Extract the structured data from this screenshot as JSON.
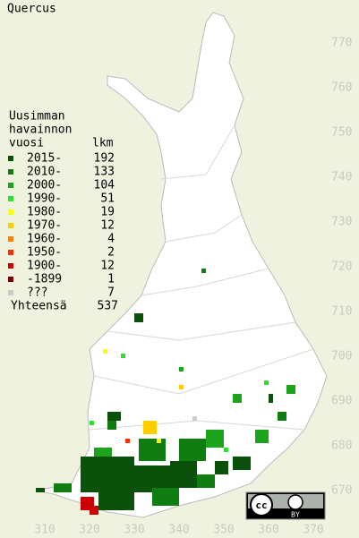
{
  "title": "Quercus",
  "legend": {
    "heading": [
      "Uusimman",
      "havainnon",
      "vuosi"
    ],
    "count_heading": "lkm",
    "rows": [
      {
        "label": "2015-",
        "count": 192,
        "color": "#0b500b"
      },
      {
        "label": "2010-",
        "count": 133,
        "color": "#0f7d0f"
      },
      {
        "label": "2000-",
        "count": 104,
        "color": "#1ca51c"
      },
      {
        "label": "1990-",
        "count": 51,
        "color": "#2ee02e"
      },
      {
        "label": "1980-",
        "count": 19,
        "color": "#ffff00"
      },
      {
        "label": "1970-",
        "count": 12,
        "color": "#ffcc00"
      },
      {
        "label": "1960-",
        "count": 4,
        "color": "#ff8000"
      },
      {
        "label": "1950-",
        "count": 2,
        "color": "#ff3000"
      },
      {
        "label": "1900-",
        "count": 12,
        "color": "#cc0000"
      },
      {
        "label": "-1899",
        "count": 1,
        "color": "#800000"
      },
      {
        "label": "???",
        "count": 7,
        "color": "#cccccc"
      }
    ],
    "total_label": "Yhteensä",
    "total": 537
  },
  "x_axis": [
    310,
    320,
    330,
    340,
    350,
    360,
    370
  ],
  "y_axis": [
    670,
    680,
    690,
    700,
    710,
    720,
    730,
    740,
    750,
    760,
    770
  ],
  "license": {
    "cc": "cc",
    "by": "BY"
  }
}
